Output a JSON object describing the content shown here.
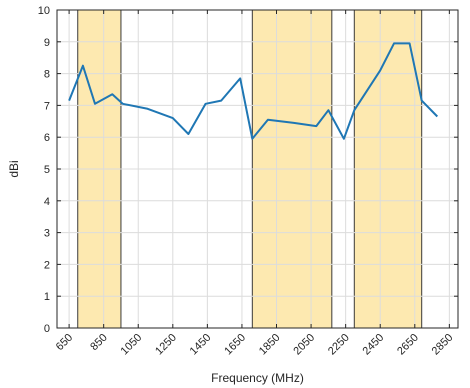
{
  "chart_data": {
    "type": "line",
    "xlabel": "Frequency (MHz)",
    "ylabel": "dBi",
    "xlim": [
      580,
      2900
    ],
    "ylim": [
      0,
      10
    ],
    "xticks": [
      650,
      850,
      1050,
      1250,
      1450,
      1650,
      1850,
      2050,
      2250,
      2450,
      2650,
      2850
    ],
    "yticks": [
      0,
      1,
      2,
      3,
      4,
      5,
      6,
      7,
      8,
      9,
      10
    ],
    "grid": true,
    "line_color": "#1f77b4",
    "band_color": "#fde9b0",
    "band_edge_color": "#3a3a3a",
    "bands": [
      {
        "x0": 700,
        "x1": 950
      },
      {
        "x0": 1710,
        "x1": 2170
      },
      {
        "x0": 2300,
        "x1": 2690
      }
    ],
    "x": [
      650,
      730,
      800,
      900,
      960,
      1100,
      1250,
      1340,
      1440,
      1530,
      1640,
      1710,
      1800,
      1950,
      2080,
      2150,
      2240,
      2300,
      2450,
      2530,
      2620,
      2690,
      2780
    ],
    "y": [
      7.15,
      8.25,
      7.05,
      7.35,
      7.05,
      6.9,
      6.6,
      6.1,
      7.05,
      7.15,
      7.85,
      5.95,
      6.55,
      6.45,
      6.35,
      6.85,
      5.95,
      6.85,
      8.1,
      8.95,
      8.95,
      7.15,
      6.65
    ]
  }
}
